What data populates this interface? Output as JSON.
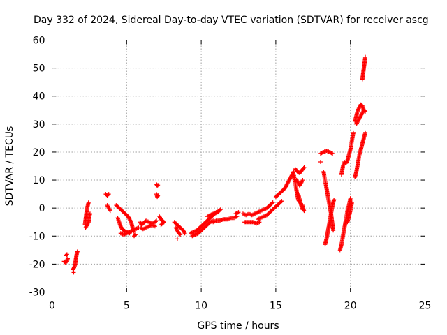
{
  "chart_data": {
    "type": "scatter",
    "title": "Day 332 of 2024, Sidereal Day-to-day VTEC variation (SDTVAR) for receiver ascg",
    "xlabel": "GPS time / hours",
    "ylabel": "SDTVAR / TECUs",
    "xlim": [
      0,
      25
    ],
    "ylim": [
      -30,
      60
    ],
    "xticks": [
      0,
      5,
      10,
      15,
      20,
      25
    ],
    "yticks": [
      -30,
      -20,
      -10,
      0,
      10,
      20,
      30,
      40,
      50,
      60
    ],
    "grid": true,
    "marker": "+",
    "color": "#ff0000",
    "series": [
      {
        "name": "SDTVAR",
        "segments": [
          [
            [
              0.8,
              -19
            ],
            [
              0.9,
              -19.5
            ],
            [
              1.0,
              -19
            ],
            [
              1.05,
              -18
            ]
          ],
          [
            [
              0.95,
              -17
            ],
            [
              1.0,
              -16.5
            ]
          ],
          [
            [
              1.4,
              -22
            ],
            [
              1.45,
              -21.5
            ],
            [
              1.5,
              -21
            ],
            [
              1.55,
              -20
            ],
            [
              1.6,
              -18
            ],
            [
              1.65,
              -16.5
            ],
            [
              1.7,
              -15.5
            ]
          ],
          [
            [
              1.45,
              -23
            ]
          ],
          [
            [
              2.2,
              -6
            ],
            [
              2.25,
              -4
            ],
            [
              2.3,
              -2
            ],
            [
              2.35,
              0
            ],
            [
              2.4,
              1
            ],
            [
              2.45,
              2
            ]
          ],
          [
            [
              2.25,
              -7
            ],
            [
              2.35,
              -6
            ],
            [
              2.45,
              -5
            ],
            [
              2.5,
              -3
            ],
            [
              2.55,
              -2
            ]
          ],
          [
            [
              3.6,
              5
            ],
            [
              3.7,
              4.5
            ],
            [
              3.8,
              5
            ]
          ],
          [
            [
              3.7,
              1
            ],
            [
              3.8,
              0
            ],
            [
              3.9,
              -1
            ]
          ],
          [
            [
              4.3,
              1
            ],
            [
              4.5,
              0
            ],
            [
              4.7,
              -1
            ],
            [
              4.9,
              -2
            ],
            [
              5.1,
              -3
            ],
            [
              5.3,
              -5
            ],
            [
              5.4,
              -7
            ],
            [
              5.5,
              -8.5
            ]
          ],
          [
            [
              4.4,
              -3.5
            ],
            [
              4.5,
              -5
            ],
            [
              4.6,
              -6.5
            ],
            [
              4.7,
              -7.5
            ],
            [
              4.8,
              -8
            ],
            [
              5.0,
              -8.5
            ],
            [
              5.2,
              -9
            ]
          ],
          [
            [
              4.6,
              -9
            ],
            [
              4.8,
              -9.5
            ],
            [
              5.0,
              -9
            ],
            [
              5.2,
              -8.5
            ],
            [
              5.4,
              -8
            ],
            [
              5.6,
              -7.5
            ],
            [
              5.8,
              -7
            ]
          ],
          [
            [
              5.5,
              -10
            ],
            [
              5.6,
              -9.5
            ]
          ],
          [
            [
              5.9,
              -5
            ],
            [
              6.0,
              -6
            ],
            [
              6.1,
              -5.5
            ],
            [
              6.2,
              -5
            ],
            [
              6.3,
              -4.5
            ],
            [
              6.5,
              -5
            ],
            [
              6.7,
              -5.5
            ],
            [
              6.9,
              -5
            ],
            [
              7.0,
              -4.5
            ]
          ],
          [
            [
              5.9,
              -7
            ],
            [
              6.1,
              -7.5
            ],
            [
              6.3,
              -7
            ],
            [
              6.5,
              -6.5
            ],
            [
              6.7,
              -6
            ],
            [
              6.9,
              -6.5
            ]
          ],
          [
            [
              7.0,
              8.5
            ],
            [
              7.05,
              8
            ],
            [
              7.1,
              8.2
            ]
          ],
          [
            [
              7.0,
              5
            ],
            [
              7.05,
              4
            ],
            [
              7.1,
              4.5
            ]
          ],
          [
            [
              7.2,
              -3
            ],
            [
              7.3,
              -4
            ],
            [
              7.4,
              -4.5
            ],
            [
              7.5,
              -5
            ]
          ],
          [
            [
              7.3,
              -6
            ],
            [
              7.4,
              -5.5
            ],
            [
              7.5,
              -5
            ]
          ],
          [
            [
              8.2,
              -5
            ],
            [
              8.4,
              -6
            ],
            [
              8.6,
              -7
            ],
            [
              8.8,
              -8
            ],
            [
              8.9,
              -9
            ]
          ],
          [
            [
              8.3,
              -7
            ],
            [
              8.4,
              -8
            ],
            [
              8.5,
              -9
            ],
            [
              8.6,
              -9.5
            ]
          ],
          [
            [
              8.4,
              -11
            ]
          ],
          [
            [
              9.3,
              -9
            ],
            [
              9.5,
              -8.5
            ],
            [
              9.7,
              -8
            ],
            [
              9.9,
              -7
            ],
            [
              10.1,
              -6
            ],
            [
              10.3,
              -5
            ],
            [
              10.5,
              -4
            ],
            [
              10.7,
              -3
            ],
            [
              10.9,
              -2
            ],
            [
              11.1,
              -1.5
            ],
            [
              11.2,
              -1
            ]
          ],
          [
            [
              9.4,
              -10
            ],
            [
              9.6,
              -9.5
            ],
            [
              9.8,
              -9
            ],
            [
              10.0,
              -8
            ],
            [
              10.2,
              -7
            ],
            [
              10.4,
              -6
            ],
            [
              10.6,
              -5
            ],
            [
              10.8,
              -4.5
            ]
          ],
          [
            [
              10.4,
              -3
            ],
            [
              10.6,
              -2.5
            ],
            [
              10.8,
              -2
            ],
            [
              11.0,
              -1.5
            ],
            [
              11.2,
              -1
            ],
            [
              11.3,
              -0.5
            ]
          ],
          [
            [
              10.8,
              -5
            ],
            [
              11.0,
              -4.5
            ],
            [
              11.2,
              -4.5
            ],
            [
              11.5,
              -4
            ],
            [
              11.8,
              -4
            ],
            [
              12.0,
              -3.5
            ],
            [
              12.2,
              -3.5
            ],
            [
              12.4,
              -3
            ]
          ],
          [
            [
              12.3,
              -2
            ],
            [
              12.5,
              -1.5
            ]
          ],
          [
            [
              12.8,
              -2
            ],
            [
              13.0,
              -2.5
            ],
            [
              13.2,
              -2
            ],
            [
              13.4,
              -2.5
            ],
            [
              13.6,
              -2
            ]
          ],
          [
            [
              12.9,
              -5
            ],
            [
              13.1,
              -5
            ],
            [
              13.3,
              -5
            ],
            [
              13.5,
              -5
            ],
            [
              13.7,
              -5.5
            ],
            [
              13.9,
              -5
            ]
          ],
          [
            [
              13.6,
              -2
            ],
            [
              13.8,
              -1.5
            ],
            [
              14.0,
              -1
            ],
            [
              14.2,
              -0.5
            ],
            [
              14.4,
              0
            ],
            [
              14.6,
              1
            ],
            [
              14.8,
              2
            ]
          ],
          [
            [
              13.8,
              -4
            ],
            [
              14.0,
              -3.5
            ],
            [
              14.2,
              -3
            ],
            [
              14.4,
              -2.5
            ],
            [
              14.6,
              -1.5
            ],
            [
              14.8,
              -0.5
            ],
            [
              15.0,
              0.5
            ],
            [
              15.2,
              1.5
            ],
            [
              15.4,
              2.5
            ]
          ],
          [
            [
              15.0,
              4
            ],
            [
              15.2,
              5
            ],
            [
              15.4,
              6
            ],
            [
              15.6,
              7
            ],
            [
              15.8,
              9
            ],
            [
              16.0,
              11
            ],
            [
              16.2,
              13
            ]
          ],
          [
            [
              16.3,
              14
            ],
            [
              16.45,
              13
            ],
            [
              16.6,
              12.5
            ],
            [
              16.75,
              13.5
            ],
            [
              16.9,
              14.5
            ]
          ],
          [
            [
              16.4,
              10
            ],
            [
              16.5,
              9
            ],
            [
              16.6,
              8
            ],
            [
              16.7,
              9
            ],
            [
              16.8,
              10
            ]
          ],
          [
            [
              16.2,
              12
            ],
            [
              16.3,
              9
            ],
            [
              16.4,
              6
            ],
            [
              16.5,
              3
            ],
            [
              16.6,
              2
            ]
          ],
          [
            [
              16.5,
              5
            ],
            [
              16.6,
              3
            ],
            [
              16.7,
              1
            ],
            [
              16.8,
              -0.5
            ]
          ],
          [
            [
              16.8,
              1
            ],
            [
              16.85,
              -0.5
            ],
            [
              16.9,
              -1
            ]
          ],
          [
            [
              18.0,
              19.5
            ],
            [
              18.2,
              20
            ],
            [
              18.4,
              20.5
            ],
            [
              18.6,
              20
            ],
            [
              18.8,
              19.5
            ]
          ],
          [
            [
              18.0,
              16.5
            ]
          ],
          [
            [
              18.2,
              13
            ],
            [
              18.3,
              10
            ],
            [
              18.4,
              7
            ],
            [
              18.5,
              4
            ],
            [
              18.6,
              1
            ],
            [
              18.7,
              -2
            ],
            [
              18.75,
              -4
            ],
            [
              18.8,
              -6
            ],
            [
              18.85,
              -8
            ]
          ],
          [
            [
              18.3,
              -13
            ],
            [
              18.4,
              -11
            ],
            [
              18.5,
              -8
            ],
            [
              18.6,
              -5
            ],
            [
              18.7,
              -2
            ],
            [
              18.8,
              1
            ],
            [
              18.9,
              3
            ]
          ],
          [
            [
              19.4,
              12
            ],
            [
              19.5,
              15
            ],
            [
              19.6,
              16.5
            ],
            [
              19.7,
              16
            ],
            [
              19.8,
              17
            ],
            [
              19.9,
              19
            ],
            [
              20.0,
              21
            ],
            [
              20.1,
              24
            ],
            [
              20.2,
              27
            ]
          ],
          [
            [
              19.3,
              -15
            ],
            [
              19.4,
              -13
            ],
            [
              19.5,
              -10
            ],
            [
              19.6,
              -7
            ],
            [
              19.7,
              -4
            ],
            [
              19.8,
              -1
            ],
            [
              19.9,
              1
            ],
            [
              20.0,
              3.5
            ]
          ],
          [
            [
              19.8,
              -5
            ],
            [
              19.9,
              -3
            ],
            [
              20.0,
              -1
            ],
            [
              20.1,
              2
            ]
          ],
          [
            [
              20.3,
              11
            ],
            [
              20.4,
              13
            ],
            [
              20.5,
              16
            ],
            [
              20.6,
              19
            ],
            [
              20.7,
              21
            ],
            [
              20.8,
              23
            ],
            [
              20.9,
              25
            ],
            [
              21.0,
              27
            ]
          ],
          [
            [
              20.3,
              31
            ],
            [
              20.4,
              33
            ],
            [
              20.5,
              35
            ],
            [
              20.6,
              36
            ],
            [
              20.7,
              37
            ],
            [
              20.8,
              36.5
            ],
            [
              20.9,
              35
            ],
            [
              21.0,
              34.5
            ]
          ],
          [
            [
              20.4,
              30
            ],
            [
              20.6,
              32
            ],
            [
              20.8,
              34
            ],
            [
              20.9,
              35
            ]
          ],
          [
            [
              20.8,
              46
            ],
            [
              20.85,
              48
            ],
            [
              20.9,
              50
            ],
            [
              20.95,
              52
            ],
            [
              21.0,
              54
            ]
          ]
        ]
      }
    ]
  }
}
